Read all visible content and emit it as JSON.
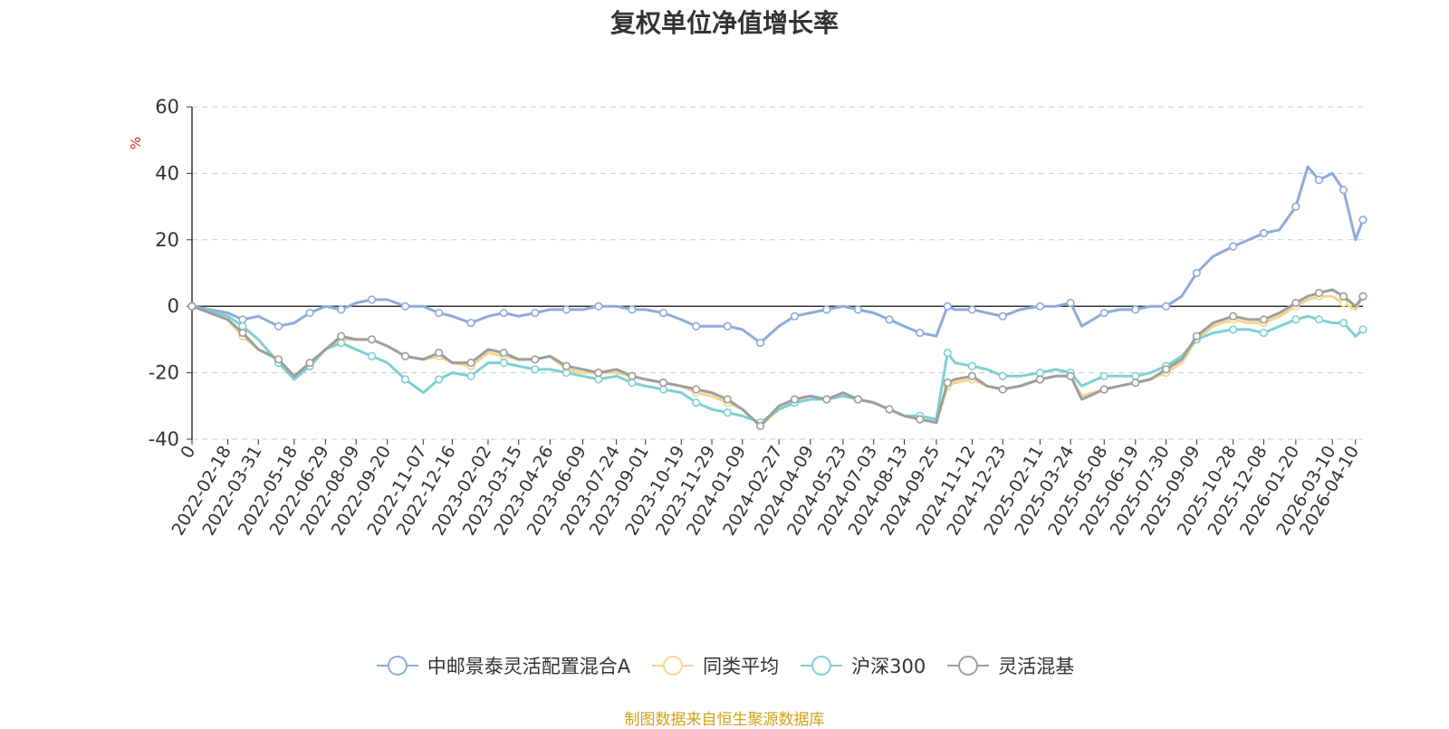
{
  "chart_data": {
    "type": "line",
    "title": "复权单位净值增长率",
    "ylabel": "%",
    "ylim": [
      -40,
      60
    ],
    "yticks": [
      60,
      40,
      20,
      0,
      -20,
      -40
    ],
    "xlim": [
      "2022-01-01",
      "2026-04-20"
    ],
    "xticks": [
      "0",
      "2022-02-18",
      "2022-03-31",
      "2022-05-18",
      "2022-06-29",
      "2022-08-09",
      "2022-09-20",
      "2022-11-07",
      "2022-12-16",
      "2023-02-02",
      "2023-03-15",
      "2023-04-26",
      "2023-06-09",
      "2023-07-24",
      "2023-09-01",
      "2023-10-19",
      "2023-11-29",
      "2024-01-09",
      "2024-02-27",
      "2024-04-09",
      "2024-05-23",
      "2024-07-03",
      "2024-08-13",
      "2024-09-25",
      "2024-11-12",
      "2024-12-23",
      "2025-02-11",
      "2025-03-24",
      "2025-05-08",
      "2025-06-19",
      "2025-07-30",
      "2025-09-09",
      "2025-10-28",
      "2025-12-08",
      "2026-01-20",
      "2026-03-10",
      "2026-04-10"
    ],
    "grid": true,
    "legend_position": "bottom",
    "x": [
      "2022-01-01",
      "2022-02-18",
      "2022-03-10",
      "2022-03-31",
      "2022-04-27",
      "2022-05-18",
      "2022-06-08",
      "2022-06-29",
      "2022-07-20",
      "2022-08-09",
      "2022-08-30",
      "2022-09-20",
      "2022-10-14",
      "2022-11-07",
      "2022-11-28",
      "2022-12-16",
      "2023-01-10",
      "2023-02-02",
      "2023-02-23",
      "2023-03-15",
      "2023-04-06",
      "2023-04-26",
      "2023-05-18",
      "2023-06-09",
      "2023-06-30",
      "2023-07-24",
      "2023-08-14",
      "2023-09-01",
      "2023-09-25",
      "2023-10-19",
      "2023-11-08",
      "2023-11-29",
      "2023-12-20",
      "2024-01-09",
      "2024-02-02",
      "2024-02-27",
      "2024-03-19",
      "2024-04-09",
      "2024-05-01",
      "2024-05-23",
      "2024-06-12",
      "2024-07-03",
      "2024-07-24",
      "2024-08-13",
      "2024-09-03",
      "2024-09-25",
      "2024-10-10",
      "2024-10-20",
      "2024-11-12",
      "2024-12-02",
      "2024-12-23",
      "2025-01-15",
      "2025-02-11",
      "2025-03-04",
      "2025-03-24",
      "2025-04-08",
      "2025-05-08",
      "2025-05-28",
      "2025-06-19",
      "2025-07-09",
      "2025-07-30",
      "2025-08-20",
      "2025-09-09",
      "2025-10-01",
      "2025-10-28",
      "2025-11-18",
      "2025-12-08",
      "2025-12-29",
      "2026-01-20",
      "2026-02-05",
      "2026-02-20",
      "2026-03-10",
      "2026-03-25",
      "2026-04-10",
      "2026-04-20"
    ],
    "series": [
      {
        "name": "中邮景泰灵活配置混合A",
        "color": "#8eabdc",
        "values": [
          0,
          -2,
          -4,
          -3,
          -6,
          -5,
          -2,
          0,
          -1,
          1,
          2,
          2,
          0,
          0,
          -2,
          -3,
          -5,
          -3,
          -2,
          -3,
          -2,
          -1,
          -1,
          -1,
          0,
          0,
          -1,
          -1,
          -2,
          -4,
          -6,
          -6,
          -6,
          -7,
          -11,
          -6,
          -3,
          -2,
          -1,
          0,
          -1,
          -2,
          -4,
          -6,
          -8,
          -9,
          0,
          -1,
          -1,
          -2,
          -3,
          -1,
          0,
          0,
          1,
          -6,
          -2,
          -1,
          -1,
          0,
          0,
          3,
          10,
          15,
          18,
          20,
          22,
          23,
          30,
          42,
          38,
          40,
          35,
          20,
          26
        ]
      },
      {
        "name": "同类平均",
        "color": "#f6d58d",
        "values": [
          0,
          -4,
          -9,
          -13,
          -16,
          -22,
          -18,
          -13,
          -10,
          -10,
          -10,
          -12,
          -15,
          -16,
          -15,
          -17,
          -18,
          -14,
          -15,
          -16,
          -16,
          -15,
          -19,
          -20,
          -20,
          -20,
          -21,
          -22,
          -23,
          -24,
          -26,
          -27,
          -29,
          -31,
          -36,
          -31,
          -29,
          -28,
          -28,
          -27,
          -28,
          -29,
          -31,
          -33,
          -34,
          -35,
          -24,
          -23,
          -22,
          -24,
          -25,
          -24,
          -22,
          -21,
          -21,
          -27,
          -25,
          -24,
          -23,
          -22,
          -20,
          -17,
          -10,
          -6,
          -4,
          -5,
          -5,
          -3,
          0,
          2,
          3,
          3,
          1,
          -1,
          3
        ]
      },
      {
        "name": "沪深300",
        "color": "#7fd0d3",
        "values": [
          0,
          -3,
          -6,
          -10,
          -17,
          -22,
          -18,
          -13,
          -11,
          -13,
          -15,
          -17,
          -22,
          -26,
          -22,
          -20,
          -21,
          -17,
          -17,
          -18,
          -19,
          -19,
          -20,
          -21,
          -22,
          -21,
          -23,
          -24,
          -25,
          -26,
          -29,
          -31,
          -32,
          -33,
          -35,
          -31,
          -29,
          -28,
          -28,
          -27,
          -28,
          -29,
          -31,
          -33,
          -33,
          -34,
          -14,
          -17,
          -18,
          -19,
          -21,
          -21,
          -20,
          -19,
          -20,
          -24,
          -21,
          -21,
          -21,
          -20,
          -18,
          -15,
          -10,
          -8,
          -7,
          -7,
          -8,
          -6,
          -4,
          -3,
          -4,
          -5,
          -5,
          -9,
          -7
        ]
      },
      {
        "name": "灵活混基",
        "color": "#9e9e9e",
        "values": [
          0,
          -4,
          -8,
          -13,
          -16,
          -21,
          -17,
          -13,
          -9,
          -10,
          -10,
          -12,
          -15,
          -16,
          -14,
          -17,
          -17,
          -13,
          -14,
          -16,
          -16,
          -15,
          -18,
          -19,
          -20,
          -19,
          -21,
          -22,
          -23,
          -24,
          -25,
          -26,
          -28,
          -31,
          -36,
          -30,
          -28,
          -27,
          -28,
          -26,
          -28,
          -29,
          -31,
          -33,
          -34,
          -35,
          -23,
          -22,
          -21,
          -24,
          -25,
          -24,
          -22,
          -21,
          -21,
          -28,
          -25,
          -24,
          -23,
          -22,
          -19,
          -16,
          -9,
          -5,
          -3,
          -4,
          -4,
          -2,
          1,
          3,
          4,
          5,
          3,
          0,
          3
        ]
      }
    ]
  },
  "source_note": "制图数据来自恒生聚源数据库",
  "source_color": "#d4a017",
  "axis_label_color": "#e02020"
}
